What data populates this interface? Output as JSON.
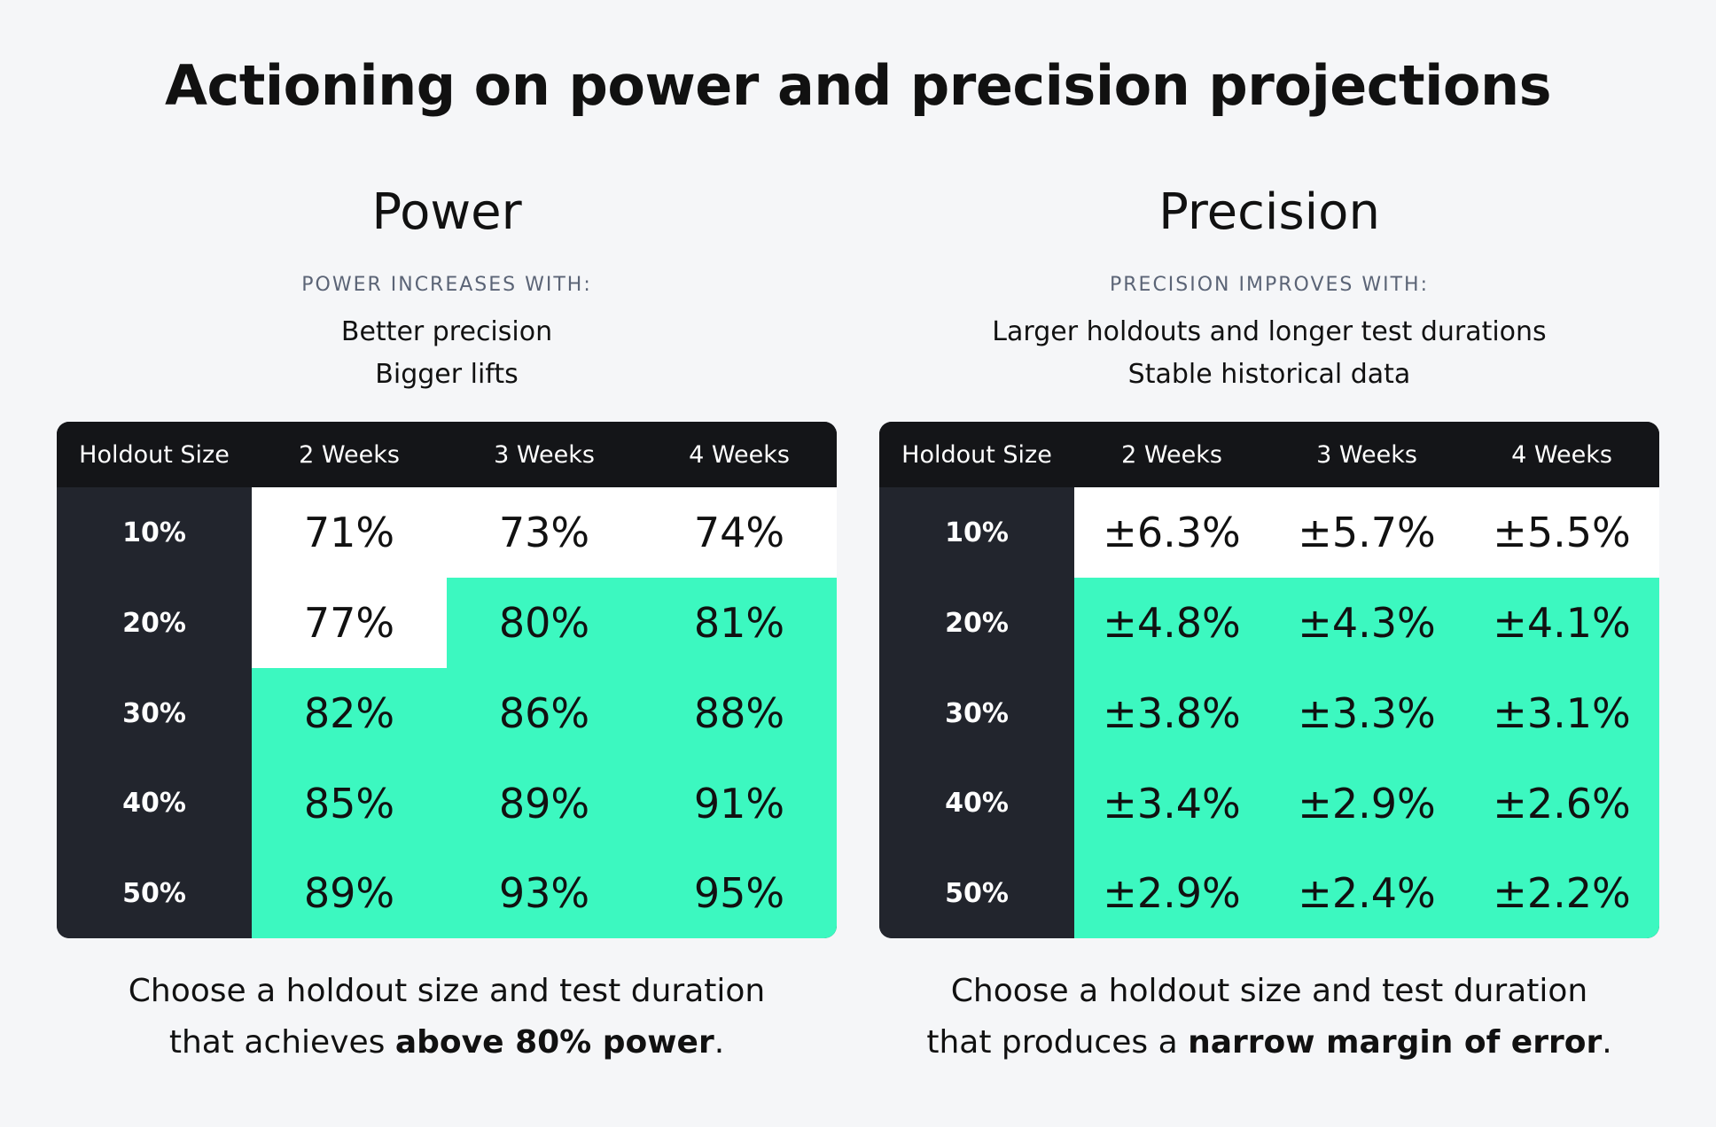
{
  "title": "Actioning on power and precision projections",
  "colors": {
    "background": "#f5f6f8",
    "header_bg": "#141518",
    "label_bg": "#22252d",
    "cell_white": "#ffffff",
    "cell_green": "#3cf8c0",
    "subtitle": "#5b6476"
  },
  "power": {
    "title": "Power",
    "subtitle": "POWER INCREASES WITH:",
    "points": [
      "Better precision",
      "Bigger lifts"
    ],
    "table": {
      "columns": [
        "Holdout Size",
        "2 Weeks",
        "3 Weeks",
        "4 Weeks"
      ],
      "rows": [
        {
          "label": "10%",
          "values": [
            "71%",
            "73%",
            "74%"
          ],
          "highlight": [
            false,
            false,
            false
          ]
        },
        {
          "label": "20%",
          "values": [
            "77%",
            "80%",
            "81%"
          ],
          "highlight": [
            false,
            true,
            true
          ]
        },
        {
          "label": "30%",
          "values": [
            "82%",
            "86%",
            "88%"
          ],
          "highlight": [
            true,
            true,
            true
          ]
        },
        {
          "label": "40%",
          "values": [
            "85%",
            "89%",
            "91%"
          ],
          "highlight": [
            true,
            true,
            true
          ]
        },
        {
          "label": "50%",
          "values": [
            "89%",
            "93%",
            "95%"
          ],
          "highlight": [
            true,
            true,
            true
          ]
        }
      ]
    },
    "footer": {
      "line1": "Choose a holdout size and test duration",
      "line2_prefix": "that achieves ",
      "line2_bold": "above 80% power",
      "line2_suffix": "."
    }
  },
  "precision": {
    "title": "Precision",
    "subtitle": "PRECISION IMPROVES WITH:",
    "points": [
      "Larger holdouts and longer test durations",
      "Stable historical data"
    ],
    "table": {
      "columns": [
        "Holdout Size",
        "2 Weeks",
        "3 Weeks",
        "4 Weeks"
      ],
      "rows": [
        {
          "label": "10%",
          "values": [
            "±6.3%",
            "±5.7%",
            "±5.5%"
          ],
          "highlight": [
            false,
            false,
            false
          ]
        },
        {
          "label": "20%",
          "values": [
            "±4.8%",
            "±4.3%",
            "±4.1%"
          ],
          "highlight": [
            true,
            true,
            true
          ]
        },
        {
          "label": "30%",
          "values": [
            "±3.8%",
            "±3.3%",
            "±3.1%"
          ],
          "highlight": [
            true,
            true,
            true
          ]
        },
        {
          "label": "40%",
          "values": [
            "±3.4%",
            "±2.9%",
            "±2.6%"
          ],
          "highlight": [
            true,
            true,
            true
          ]
        },
        {
          "label": "50%",
          "values": [
            "±2.9%",
            "±2.4%",
            "±2.2%"
          ],
          "highlight": [
            true,
            true,
            true
          ]
        }
      ]
    },
    "footer": {
      "line1": "Choose a holdout size and test duration",
      "line2_prefix": "that produces a ",
      "line2_bold": "narrow margin of error",
      "line2_suffix": "."
    }
  }
}
